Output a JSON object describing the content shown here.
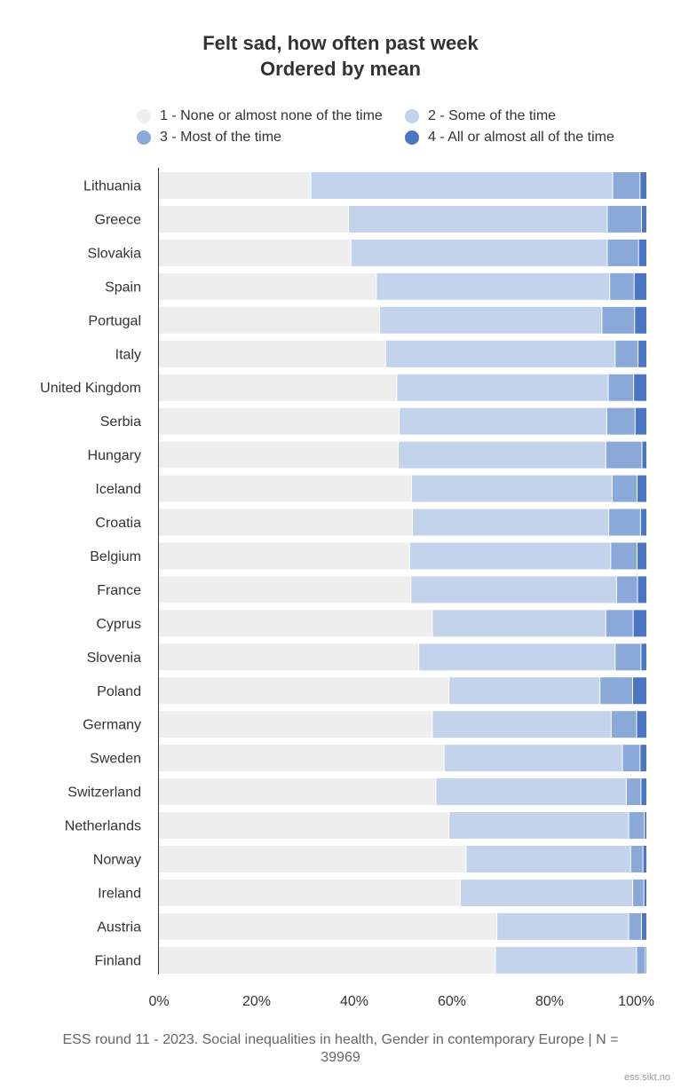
{
  "colors": {
    "none": "#eeeeee",
    "some": "#c3d3ec",
    "most": "#8aa8d8",
    "all": "#4a76c3",
    "axis": "#333333",
    "grid": "#e6e6e6"
  },
  "chart_data": {
    "type": "bar",
    "orientation": "horizontal",
    "stacked": true,
    "percent": true,
    "title": [
      "Felt sad, how often past week",
      "Ordered by mean"
    ],
    "xlim": [
      0,
      100
    ],
    "x_ticks": [
      "0%",
      "20%",
      "40%",
      "60%",
      "80%",
      "100%"
    ],
    "legend_placement": "top",
    "categories": [
      "Lithuania",
      "Greece",
      "Slovakia",
      "Spain",
      "Portugal",
      "Italy",
      "United Kingdom",
      "Serbia",
      "Hungary",
      "Iceland",
      "Croatia",
      "Belgium",
      "France",
      "Cyprus",
      "Slovenia",
      "Poland",
      "Germany",
      "Sweden",
      "Switzerland",
      "Netherlands",
      "Norway",
      "Ireland",
      "Austria",
      "Finland"
    ],
    "series": [
      {
        "name": "1 - None or almost none of the time",
        "color_key": "none",
        "values": [
          31.2,
          38.9,
          39.4,
          44.6,
          45.3,
          46.5,
          48.8,
          49.3,
          49.1,
          51.8,
          52.0,
          51.4,
          51.7,
          56.1,
          53.3,
          59.5,
          56.1,
          58.5,
          56.8,
          59.5,
          63.0,
          61.8,
          69.3,
          69.0
        ]
      },
      {
        "name": "2 - Some of the time",
        "color_key": "some",
        "values": [
          61.8,
          53.0,
          52.5,
          47.8,
          45.5,
          47.0,
          43.3,
          42.5,
          42.5,
          41.1,
          40.2,
          41.2,
          42.1,
          35.5,
          40.2,
          30.9,
          36.6,
          36.5,
          39.0,
          36.8,
          33.7,
          35.3,
          27.0,
          28.9
        ]
      },
      {
        "name": "3 - Most of the time",
        "color_key": "most",
        "values": [
          5.6,
          7.0,
          6.4,
          5.0,
          6.7,
          4.7,
          5.2,
          5.8,
          7.4,
          5.1,
          6.5,
          5.4,
          4.3,
          5.6,
          5.3,
          6.7,
          5.2,
          3.6,
          3.0,
          3.2,
          2.5,
          2.3,
          2.6,
          1.8
        ]
      },
      {
        "name": "4 - All or almost all of the time",
        "color_key": "all",
        "values": [
          1.4,
          1.1,
          1.7,
          2.6,
          2.5,
          1.8,
          2.7,
          2.4,
          1.0,
          2.0,
          1.3,
          2.0,
          1.9,
          2.8,
          1.2,
          2.9,
          2.1,
          1.4,
          1.2,
          0.5,
          0.8,
          0.6,
          1.1,
          0.3
        ]
      }
    ]
  },
  "caption": "ESS round 11 - 2023. Social inequalities in health, Gender in contemporary Europe | N = 39969",
  "credit": "ess.sikt.no"
}
